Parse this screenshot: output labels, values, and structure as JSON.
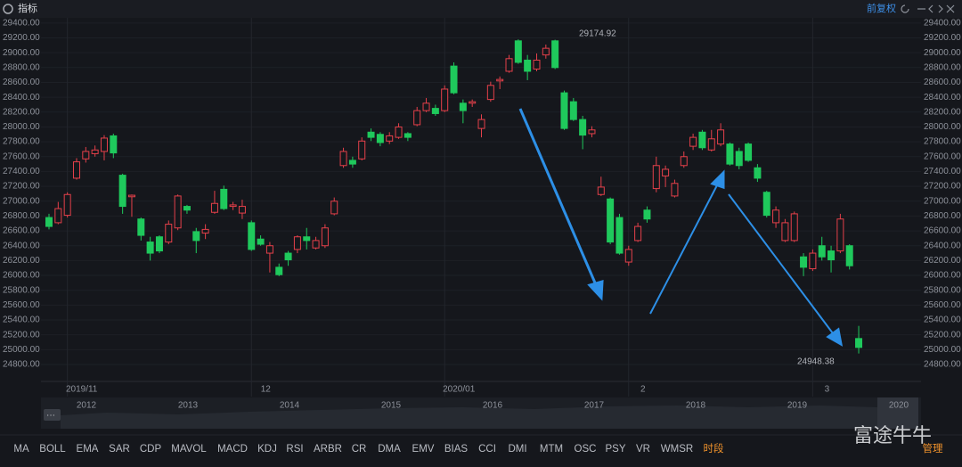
{
  "header": {
    "title": "指标",
    "adjust": "前复权"
  },
  "chart_data": {
    "type": "candlestick",
    "categories": [
      null,
      null,
      "2019/11",
      null,
      null,
      null,
      null,
      null,
      null,
      null,
      null,
      null,
      null,
      null,
      null,
      null,
      null,
      null,
      null,
      null,
      null,
      null,
      "12",
      null,
      null,
      null,
      null,
      null,
      null,
      null,
      null,
      null,
      null,
      null,
      null,
      null,
      null,
      null,
      null,
      null,
      null,
      null,
      null,
      "2020/01",
      null,
      null,
      null,
      null,
      null,
      null,
      null,
      null,
      null,
      null,
      null,
      null,
      null,
      null,
      null,
      null,
      null,
      null,
      null,
      "2",
      null,
      null,
      null,
      null,
      null,
      null,
      null,
      null,
      null,
      null,
      null,
      null,
      null,
      null,
      null,
      null,
      null,
      null,
      null,
      "3",
      null,
      null,
      null,
      null,
      null
    ],
    "open": [
      26780,
      26710,
      26810,
      27310,
      27570,
      27640,
      27670,
      27880,
      27350,
      27060,
      26760,
      26450,
      26520,
      26450,
      26640,
      26930,
      26590,
      26570,
      26850,
      27160,
      26930,
      26840,
      26710,
      26490,
      26300,
      26110,
      26300,
      26350,
      26520,
      26370,
      26400,
      26830,
      27480,
      27550,
      27570,
      27930,
      27900,
      27810,
      27860,
      27910,
      28030,
      28220,
      28250,
      28220,
      28820,
      28320,
      28320,
      27980,
      28370,
      28620,
      28750,
      29160,
      28900,
      28780,
      28970,
      29160,
      28460,
      28340,
      28100,
      27910,
      27090,
      27030,
      26780,
      26180,
      26470,
      26880,
      27170,
      27340,
      27070,
      27480,
      27740,
      27930,
      27690,
      27770,
      27770,
      27670,
      27770,
      27450,
      27120,
      26710,
      26470,
      26470,
      26250,
      26090,
      26400,
      26330,
      26330,
      26400,
      25150
    ],
    "high": [
      26830,
      26990,
      27120,
      27580,
      27730,
      27750,
      27890,
      27910,
      27370,
      27090,
      26780,
      26520,
      26540,
      26740,
      27090,
      26950,
      26640,
      26690,
      27140,
      27210,
      26990,
      27020,
      26740,
      26540,
      26450,
      26160,
      26330,
      26540,
      26640,
      26520,
      26690,
      27050,
      27720,
      27600,
      27860,
      27980,
      27930,
      27930,
      28050,
      27930,
      28270,
      28390,
      28300,
      28560,
      28870,
      28370,
      28370,
      28170,
      28610,
      28680,
      28970,
      29180,
      28970,
      28990,
      29110,
      29174.92,
      28490,
      28390,
      28150,
      28010,
      27330,
      27050,
      26830,
      26400,
      26710,
      26930,
      27600,
      27480,
      27290,
      27670,
      27910,
      27960,
      27960,
      28050,
      27790,
      27720,
      27790,
      27500,
      27140,
      26930,
      26760,
      26860,
      26300,
      26350,
      26520,
      26400,
      26830,
      26420,
      25320
    ],
    "low": [
      26620,
      26690,
      26780,
      27290,
      27520,
      27600,
      27550,
      27580,
      26830,
      26790,
      26470,
      26200,
      26300,
      26420,
      26610,
      26830,
      26300,
      26490,
      26830,
      26880,
      26880,
      26760,
      26330,
      26400,
      26040,
      25990,
      26130,
      26300,
      26350,
      26350,
      26370,
      26810,
      27450,
      27450,
      27550,
      27810,
      27740,
      27770,
      27840,
      27810,
      28010,
      28200,
      28150,
      28200,
      28440,
      28050,
      28270,
      27860,
      28340,
      28510,
      28730,
      28850,
      28630,
      28750,
      28920,
      28780,
      27960,
      28080,
      27700,
      27860,
      27070,
      26420,
      26280,
      26130,
      26450,
      26710,
      27120,
      27190,
      27050,
      27450,
      27690,
      27690,
      27670,
      27740,
      27480,
      27430,
      27530,
      27260,
      26780,
      26640,
      26450,
      26450,
      25990,
      26060,
      26200,
      26040,
      26300,
      26080,
      24948.38
    ],
    "close": [
      26660,
      26900,
      27090,
      27530,
      27670,
      27690,
      27850,
      27650,
      26930,
      27080,
      26540,
      26300,
      26330,
      26690,
      27070,
      26880,
      26470,
      26620,
      26970,
      26900,
      26950,
      26930,
      26350,
      26420,
      26400,
      26010,
      26210,
      26520,
      26470,
      26470,
      26640,
      27000,
      27670,
      27500,
      27810,
      27860,
      27790,
      27880,
      28000,
      27860,
      28220,
      28320,
      28180,
      28510,
      28460,
      28220,
      28340,
      28100,
      28560,
      28640,
      28920,
      28870,
      28750,
      28900,
      29060,
      28800,
      27980,
      28100,
      27890,
      27960,
      27190,
      26450,
      26300,
      26350,
      26660,
      26760,
      27480,
      27430,
      27240,
      27600,
      27860,
      27720,
      27840,
      27960,
      27500,
      27480,
      27550,
      27310,
      26810,
      26880,
      26710,
      26830,
      26110,
      26300,
      26250,
      26210,
      26760,
      26130,
      25030
    ],
    "up_color": "#e5404a",
    "down_color": "#1fc95c",
    "ylim": [
      24680,
      29470
    ],
    "yticks": [
      {
        "value": 24800,
        "label": "24800.00"
      },
      {
        "value": 25000,
        "label": "25000.00"
      },
      {
        "value": 25200,
        "label": "25200.00"
      },
      {
        "value": 25400,
        "label": "25400.00"
      },
      {
        "value": 25600,
        "label": "25600.00"
      },
      {
        "value": 25800,
        "label": "25800.00"
      },
      {
        "value": 26000,
        "label": "26000.00"
      },
      {
        "value": 26200,
        "label": "26200.00"
      },
      {
        "value": 26400,
        "label": "26400.00"
      },
      {
        "value": 26600,
        "label": "26600.00"
      },
      {
        "value": 26800,
        "label": "26800.00"
      },
      {
        "value": 27000,
        "label": "27000.00"
      },
      {
        "value": 27200,
        "label": "27200.00"
      },
      {
        "value": 27400,
        "label": "27400.00"
      },
      {
        "value": 27600,
        "label": "27600.00"
      },
      {
        "value": 27800,
        "label": "27800.00"
      },
      {
        "value": 28000,
        "label": "28000.00"
      },
      {
        "value": 28200,
        "label": "28200.00"
      },
      {
        "value": 28400,
        "label": "28400.00"
      },
      {
        "value": 28600,
        "label": "28600.00"
      },
      {
        "value": 28800,
        "label": "28800.00"
      },
      {
        "value": 29000,
        "label": "29000.00"
      },
      {
        "value": 29200,
        "label": "29200.00"
      },
      {
        "value": 29400,
        "label": "29400.00"
      }
    ],
    "grid": true
  },
  "navigator": {
    "labels": [
      "2012",
      "2013",
      "2014",
      "2015",
      "2016",
      "2017",
      "2018",
      "2019",
      "2020"
    ]
  },
  "indicators": [
    "MA",
    "BOLL",
    "EMA",
    "SAR",
    "CDP",
    "MAVOL",
    "MACD",
    "KDJ",
    "RSI",
    "ARBR",
    "CR",
    "DMA",
    "EMV",
    "BIAS",
    "CCI",
    "DMI",
    "MTM",
    "OSC",
    "PSY",
    "VR",
    "WMSR",
    "时段",
    "管理"
  ],
  "watermark": "富途牛牛"
}
